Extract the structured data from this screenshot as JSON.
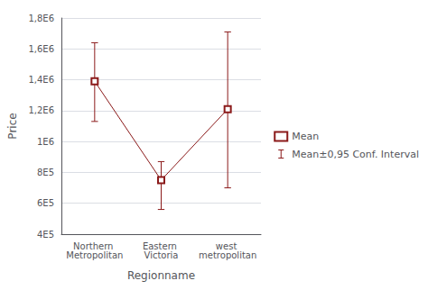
{
  "chart_data": {
    "type": "line",
    "xlabel": "Regionname",
    "ylabel": "Price",
    "categories": [
      "Northern Metropolitan",
      "Eastern Victoria",
      "west metropolitan"
    ],
    "series": [
      {
        "name": "Mean",
        "type": "line",
        "color": "#8B1A1A",
        "marker": "square",
        "values": [
          1390000,
          750000,
          1210000
        ]
      },
      {
        "name": "Mean±0,95 Conf. Interval",
        "type": "errorbar",
        "color": "#8B1A1A",
        "lower": [
          1130000,
          560000,
          700000
        ],
        "upper": [
          1640000,
          870000,
          1710000
        ]
      }
    ],
    "ylim": [
      400000,
      1800000
    ],
    "yticks": [
      {
        "value": 400000,
        "label": "4E5"
      },
      {
        "value": 600000,
        "label": "6E5"
      },
      {
        "value": 800000,
        "label": "8E5"
      },
      {
        "value": 1000000,
        "label": "1E6"
      },
      {
        "value": 1200000,
        "label": "1,2E6"
      },
      {
        "value": 1400000,
        "label": "1,4E6"
      },
      {
        "value": 1600000,
        "label": "1,6E6"
      },
      {
        "value": 1800000,
        "label": "1,8E6"
      }
    ],
    "grid": true,
    "legend": "right"
  }
}
